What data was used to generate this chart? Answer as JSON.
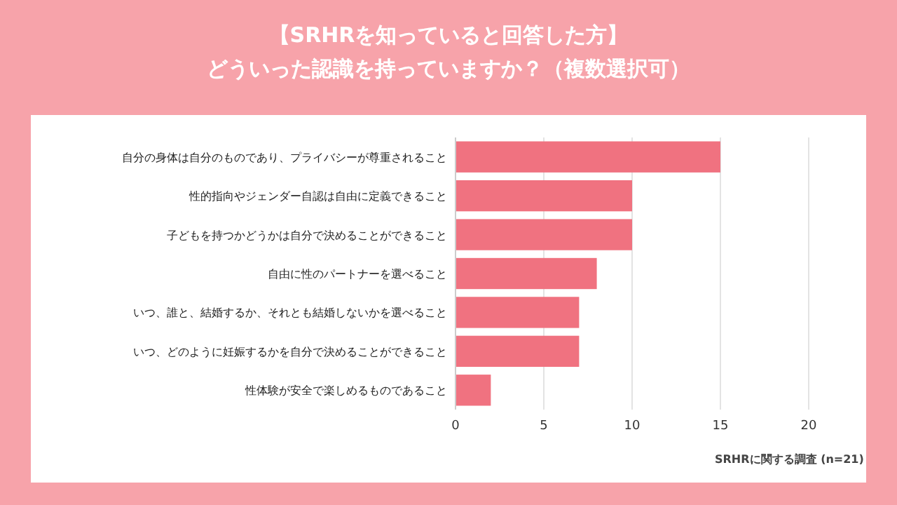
{
  "chart_data": {
    "type": "bar",
    "orientation": "horizontal",
    "title": "【SRHRを知っていると回答した方】",
    "subtitle": "どういった認識を持っていますか？（複数選択可）",
    "categories": [
      "自分の身体は自分のものであり、プライバシーが尊重されること",
      "性的指向やジェンダー自認は自由に定義できること",
      "子どもを持つかどうかは自分で決めることができること",
      "自由に性のパートナーを選べること",
      "いつ、誰と、結婚するか、それとも結婚しないかを選べること",
      "いつ、どのように妊娠するかを自分で決めることができること",
      "性体験が安全で楽しめるものであること"
    ],
    "values": [
      15,
      10,
      10,
      8,
      7,
      7,
      2
    ],
    "color": "#f07280",
    "xlim": [
      0,
      20
    ],
    "xticks": [
      0,
      5,
      10,
      15,
      20
    ],
    "grid": "x",
    "annotations": [
      "SRHRに関する調査 (n=21)"
    ]
  }
}
